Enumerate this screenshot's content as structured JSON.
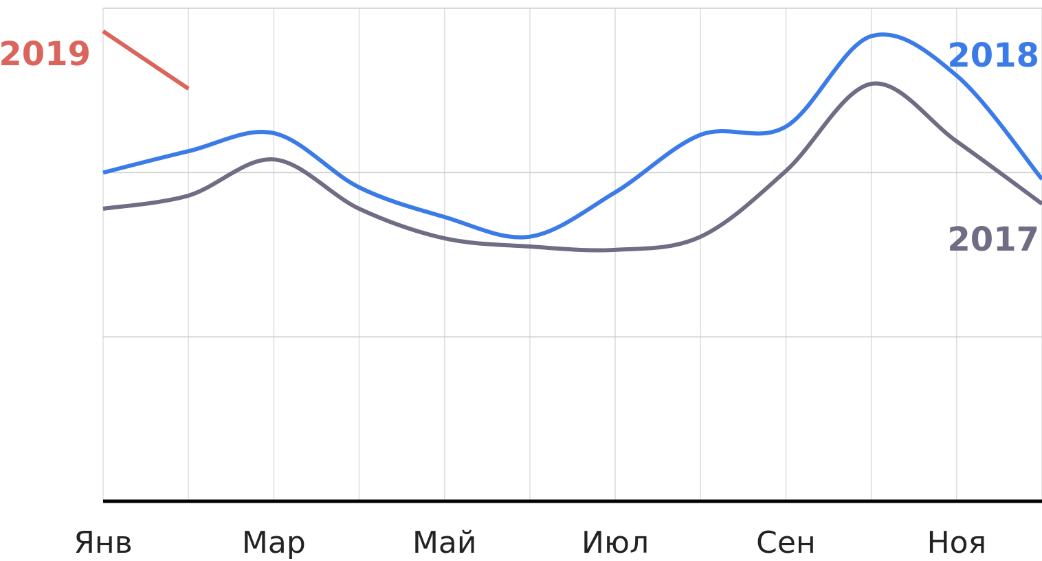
{
  "chart_data": {
    "type": "line",
    "categories": [
      "Янв",
      null,
      "Мар",
      null,
      "Май",
      null,
      "Июл",
      null,
      "Сен",
      null,
      "Ноя",
      null
    ],
    "series": [
      {
        "name": "2019",
        "color": "#d9655c",
        "values": [
          2.86,
          2.51,
          null,
          null,
          null,
          null,
          null,
          null,
          null,
          null,
          null,
          null
        ]
      },
      {
        "name": "2018",
        "color": "#3b7be8",
        "values": [
          2.0,
          2.13,
          2.24,
          1.91,
          1.73,
          1.61,
          1.88,
          2.23,
          2.28,
          2.83,
          2.59,
          1.96
        ]
      },
      {
        "name": "2017",
        "color": "#6f6c84",
        "values": [
          1.78,
          1.86,
          2.08,
          1.78,
          1.6,
          1.55,
          1.53,
          1.61,
          2.01,
          2.54,
          2.19,
          1.81
        ]
      }
    ],
    "ylim": [
      0,
      3
    ],
    "yticks": [
      0,
      1,
      2,
      3
    ],
    "grid": true
  }
}
